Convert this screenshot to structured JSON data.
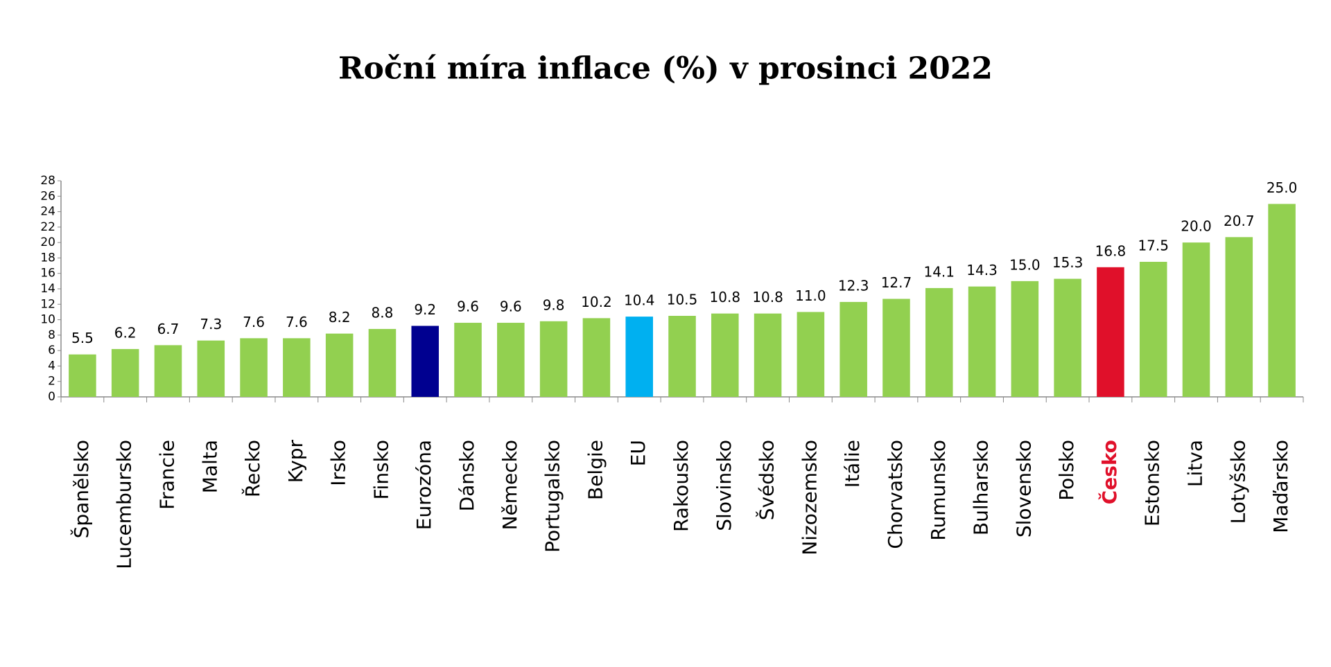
{
  "chart_data": {
    "type": "bar",
    "title": "Roční míra inflace (%) v prosinci 2022",
    "categories": [
      "Španělsko",
      "Lucembursko",
      "Francie",
      "Malta",
      "Řecko",
      "Kypr",
      "Irsko",
      "Finsko",
      "Eurozóna",
      "Dánsko",
      "Německo",
      "Portugalsko",
      "Belgie",
      "EU",
      "Rakousko",
      "Slovinsko",
      "Švédsko",
      "Nizozemsko",
      "Itálie",
      "Chorvatsko",
      "Rumunsko",
      "Bulharsko",
      "Slovensko",
      "Polsko",
      "Česko",
      "Estonsko",
      "Litva",
      "Lotyšsko",
      "Maďarsko"
    ],
    "values": [
      5.5,
      6.2,
      6.7,
      7.3,
      7.6,
      7.6,
      8.2,
      8.8,
      9.2,
      9.6,
      9.6,
      9.8,
      10.2,
      10.4,
      10.5,
      10.8,
      10.8,
      11.0,
      12.3,
      12.7,
      14.1,
      14.3,
      15.0,
      15.3,
      16.8,
      17.5,
      20.0,
      20.7,
      25.0
    ],
    "value_labels": [
      "5.5",
      "6.2",
      "6.7",
      "7.3",
      "7.6",
      "7.6",
      "8.2",
      "8.8",
      "9.2",
      "9.6",
      "9.6",
      "9.8",
      "10.2",
      "10.4",
      "10.5",
      "10.8",
      "10.8",
      "11.0",
      "12.3",
      "12.7",
      "14.1",
      "14.3",
      "15.0",
      "15.3",
      "16.8",
      "17.5",
      "20.0",
      "20.7",
      "25.0"
    ],
    "colors": [
      "#92d050",
      "#92d050",
      "#92d050",
      "#92d050",
      "#92d050",
      "#92d050",
      "#92d050",
      "#92d050",
      "#000090",
      "#92d050",
      "#92d050",
      "#92d050",
      "#92d050",
      "#00b0f0",
      "#92d050",
      "#92d050",
      "#92d050",
      "#92d050",
      "#92d050",
      "#92d050",
      "#92d050",
      "#92d050",
      "#92d050",
      "#92d050",
      "#e0102a",
      "#92d050",
      "#92d050",
      "#92d050",
      "#92d050"
    ],
    "label_colors": [
      "#000000",
      "#000000",
      "#000000",
      "#000000",
      "#000000",
      "#000000",
      "#000000",
      "#000000",
      "#000000",
      "#000000",
      "#000000",
      "#000000",
      "#000000",
      "#000000",
      "#000000",
      "#000000",
      "#000000",
      "#000000",
      "#000000",
      "#000000",
      "#000000",
      "#000000",
      "#000000",
      "#000000",
      "#e0102a",
      "#000000",
      "#000000",
      "#000000",
      "#000000"
    ],
    "ylim": [
      0,
      28
    ],
    "yticks": [
      0,
      2,
      4,
      6,
      8,
      10,
      12,
      14,
      16,
      18,
      20,
      22,
      24,
      26,
      28
    ]
  }
}
